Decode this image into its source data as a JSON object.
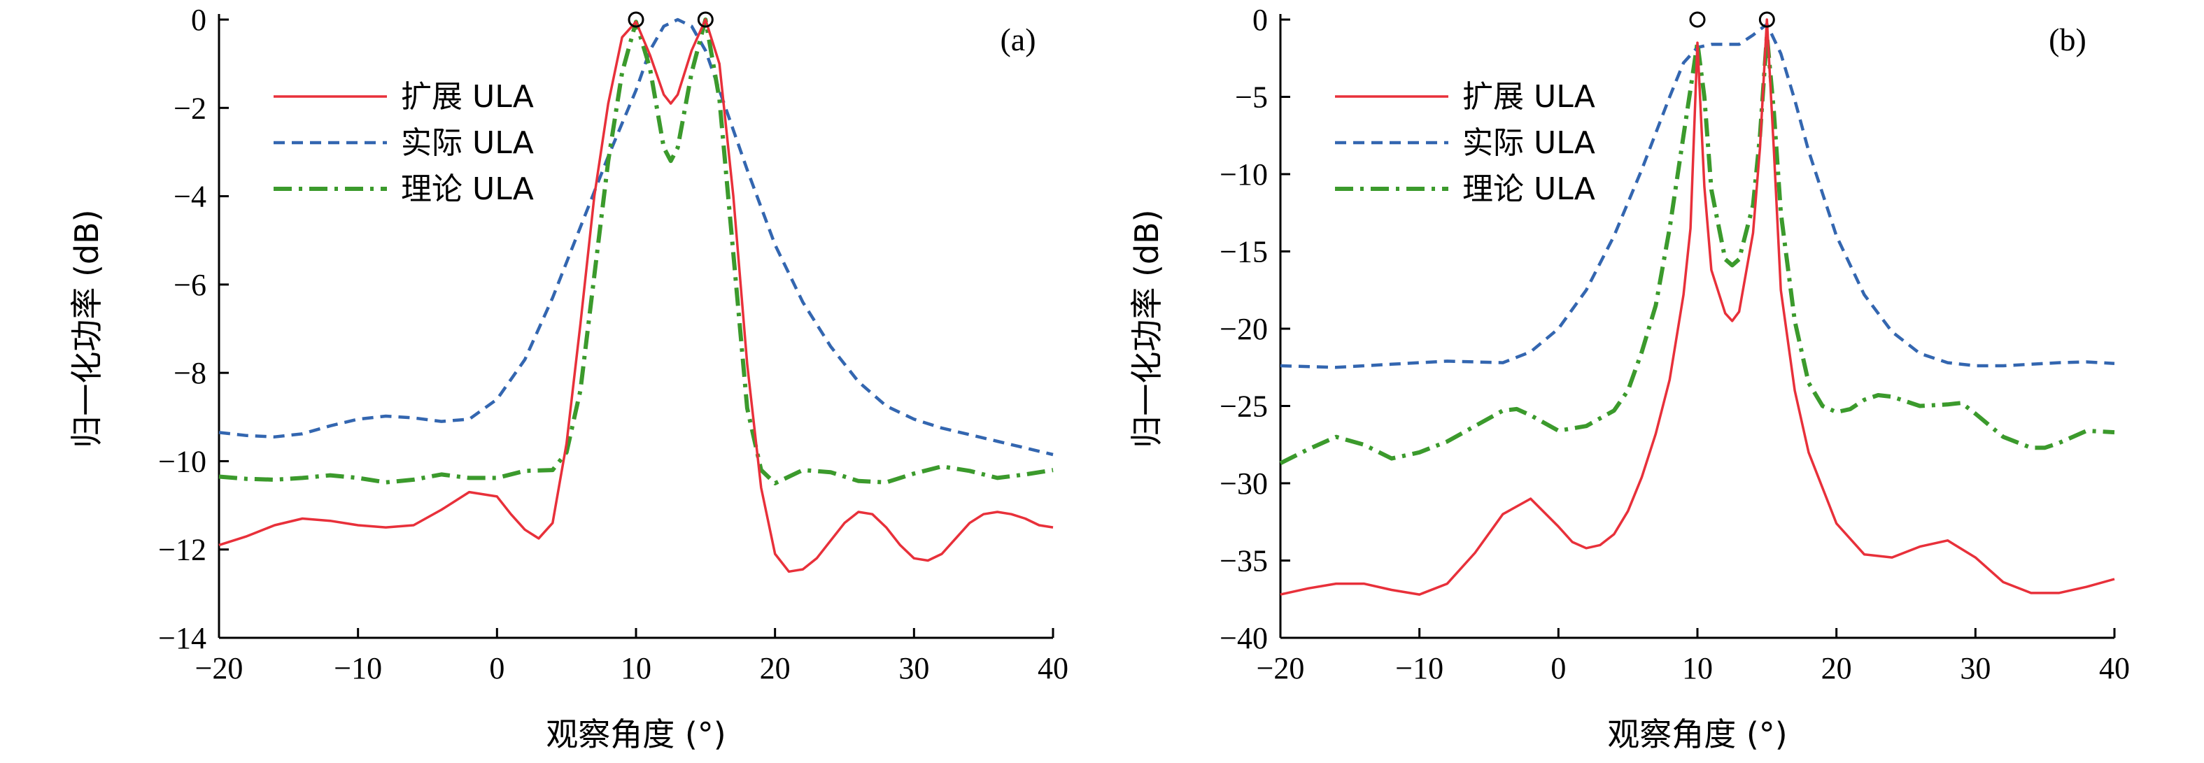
{
  "chart_data": [
    {
      "type": "line",
      "panel_label": "(a)",
      "xlabel": "观察角度 (°)",
      "ylabel": "归一化功率 (dB)",
      "xlim": [
        -20,
        40
      ],
      "ylim": [
        -14,
        0
      ],
      "xticks": [
        -20,
        -10,
        0,
        10,
        20,
        30,
        40
      ],
      "yticks": [
        0,
        -2,
        -4,
        -6,
        -8,
        -10,
        -12,
        -14
      ],
      "xtick_labels": [
        "−20",
        "−10",
        "0",
        "10",
        "20",
        "30",
        "40"
      ],
      "ytick_labels": [
        "0",
        "−2",
        "−4",
        "−6",
        "−8",
        "−10",
        "−12",
        "−14"
      ],
      "legend_position": "top-left",
      "markers": [
        {
          "x": 10,
          "y": 0
        },
        {
          "x": 15,
          "y": 0
        }
      ],
      "series": [
        {
          "name": "扩展 ULA",
          "color": "#e8303a",
          "style": "solid",
          "x": [
            -20,
            -18,
            -16,
            -14,
            -12,
            -10,
            -8,
            -6,
            -4,
            -2,
            0,
            1,
            2,
            3,
            4,
            5,
            6,
            7,
            8,
            9,
            10,
            11,
            12,
            12.5,
            13,
            14,
            15,
            16,
            17,
            18,
            19,
            20,
            21,
            22,
            23,
            24,
            25,
            26,
            27,
            28,
            29,
            30,
            31,
            32,
            33,
            34,
            35,
            36,
            37,
            38,
            39,
            40
          ],
          "y": [
            -11.9,
            -11.7,
            -11.45,
            -11.3,
            -11.35,
            -11.45,
            -11.5,
            -11.45,
            -11.1,
            -10.7,
            -10.8,
            -11.2,
            -11.55,
            -11.75,
            -11.4,
            -9.6,
            -6.9,
            -4.0,
            -1.9,
            -0.4,
            -0.05,
            -0.8,
            -1.7,
            -1.9,
            -1.7,
            -0.7,
            0,
            -1.0,
            -4.0,
            -7.8,
            -10.6,
            -12.1,
            -12.5,
            -12.45,
            -12.2,
            -11.8,
            -11.4,
            -11.15,
            -11.2,
            -11.5,
            -11.9,
            -12.2,
            -12.25,
            -12.1,
            -11.75,
            -11.4,
            -11.2,
            -11.15,
            -11.2,
            -11.3,
            -11.45,
            -11.5
          ]
        },
        {
          "name": "实际 ULA",
          "color": "#3366b0",
          "style": "dashed",
          "x": [
            -20,
            -18,
            -16,
            -14,
            -12,
            -10,
            -8,
            -6,
            -4,
            -2,
            0,
            2,
            4,
            6,
            8,
            10,
            11,
            12,
            13,
            14,
            15,
            16,
            18,
            20,
            22,
            24,
            26,
            28,
            30,
            32,
            34,
            36,
            38,
            40
          ],
          "y": [
            -9.35,
            -9.42,
            -9.45,
            -9.38,
            -9.2,
            -9.05,
            -8.98,
            -9.02,
            -9.1,
            -9.05,
            -8.6,
            -7.7,
            -6.3,
            -4.7,
            -3.1,
            -1.6,
            -0.7,
            -0.15,
            0,
            -0.15,
            -0.7,
            -1.6,
            -3.4,
            -5.1,
            -6.4,
            -7.4,
            -8.2,
            -8.75,
            -9.05,
            -9.25,
            -9.4,
            -9.55,
            -9.7,
            -9.85
          ]
        },
        {
          "name": "理论 ULA",
          "color": "#3b9a2c",
          "style": "dashdot",
          "x": [
            -20,
            -18,
            -16,
            -14,
            -12,
            -10,
            -8,
            -6,
            -4,
            -2,
            0,
            2,
            4,
            5,
            6,
            7,
            8,
            9,
            10,
            11,
            12,
            12.5,
            13,
            14,
            15,
            16,
            17,
            18,
            19,
            20,
            22,
            24,
            26,
            28,
            30,
            32,
            34,
            36,
            38,
            40
          ],
          "y": [
            -10.35,
            -10.4,
            -10.42,
            -10.38,
            -10.32,
            -10.38,
            -10.48,
            -10.42,
            -10.3,
            -10.38,
            -10.38,
            -10.22,
            -10.2,
            -9.8,
            -8.4,
            -5.8,
            -3.2,
            -1.2,
            -0.05,
            -1.1,
            -2.9,
            -3.2,
            -2.9,
            -1.2,
            0,
            -1.8,
            -5.3,
            -8.8,
            -10.2,
            -10.5,
            -10.2,
            -10.25,
            -10.45,
            -10.48,
            -10.28,
            -10.12,
            -10.22,
            -10.38,
            -10.3,
            -10.2
          ]
        }
      ]
    },
    {
      "type": "line",
      "panel_label": "(b)",
      "xlabel": "观察角度 (°)",
      "ylabel": "归一化功率 (dB)",
      "xlim": [
        -20,
        40
      ],
      "ylim": [
        -40,
        0
      ],
      "xticks": [
        -20,
        -10,
        0,
        10,
        20,
        30,
        40
      ],
      "yticks": [
        0,
        -5,
        -10,
        -15,
        -20,
        -25,
        -30,
        -35,
        -40
      ],
      "xtick_labels": [
        "−20",
        "−10",
        "0",
        "10",
        "20",
        "30",
        "40"
      ],
      "ytick_labels": [
        "0",
        "−5",
        "−10",
        "−15",
        "−20",
        "−25",
        "−30",
        "−35",
        "−40"
      ],
      "legend_position": "top-left",
      "markers": [
        {
          "x": 10,
          "y": 0
        },
        {
          "x": 15,
          "y": 0
        }
      ],
      "series": [
        {
          "name": "扩展 ULA",
          "color": "#e8303a",
          "style": "solid",
          "x": [
            -20,
            -18,
            -16,
            -14,
            -12,
            -10,
            -8,
            -6,
            -4,
            -2,
            0,
            1,
            2,
            3,
            4,
            5,
            6,
            7,
            8,
            9,
            9.5,
            10,
            10.5,
            11,
            12,
            12.5,
            13,
            14,
            14.5,
            15,
            15.5,
            16,
            17,
            18,
            20,
            22,
            24,
            26,
            28,
            30,
            32,
            34,
            36,
            38,
            40
          ],
          "y": [
            -37.2,
            -36.8,
            -36.5,
            -36.5,
            -36.9,
            -37.2,
            -36.5,
            -34.5,
            -32.0,
            -31.0,
            -32.8,
            -33.8,
            -34.2,
            -34.0,
            -33.3,
            -31.8,
            -29.6,
            -26.8,
            -23.3,
            -17.8,
            -13.5,
            -1.5,
            -10.8,
            -16.2,
            -19.0,
            -19.5,
            -18.9,
            -13.8,
            -8.3,
            0,
            -8.5,
            -17.5,
            -24.0,
            -28.0,
            -32.6,
            -34.6,
            -34.8,
            -34.1,
            -33.7,
            -34.8,
            -36.4,
            -37.1,
            -37.1,
            -36.7,
            -36.2
          ]
        },
        {
          "name": "实际 ULA",
          "color": "#3366b0",
          "style": "dashed",
          "x": [
            -20,
            -16,
            -12,
            -8,
            -4,
            -2,
            0,
            2,
            4,
            6,
            8,
            9,
            10,
            11,
            12,
            13,
            14,
            15,
            16,
            17,
            18,
            20,
            22,
            24,
            26,
            28,
            30,
            32,
            34,
            36,
            38,
            40
          ],
          "y": [
            -22.4,
            -22.5,
            -22.3,
            -22.1,
            -22.2,
            -21.5,
            -20.0,
            -17.5,
            -14.0,
            -9.7,
            -5.0,
            -2.8,
            -1.8,
            -1.6,
            -1.6,
            -1.6,
            -1.0,
            -0.3,
            -2.2,
            -5.2,
            -8.5,
            -14.0,
            -17.8,
            -20.2,
            -21.6,
            -22.2,
            -22.4,
            -22.4,
            -22.3,
            -22.2,
            -22.15,
            -22.25
          ]
        },
        {
          "name": "理论 ULA",
          "color": "#3b9a2c",
          "style": "dashdot",
          "x": [
            -20,
            -18,
            -16,
            -14,
            -12,
            -10,
            -8,
            -6,
            -4,
            -3,
            -2,
            0,
            2,
            4,
            5,
            6,
            7,
            8,
            9,
            9.5,
            10,
            10.5,
            11,
            12,
            12.5,
            13,
            14,
            14.5,
            15,
            15.5,
            16,
            17,
            18,
            19,
            20,
            21,
            22,
            23,
            24,
            26,
            28,
            29,
            30,
            32,
            34,
            35,
            36,
            38,
            40
          ],
          "y": [
            -28.7,
            -27.8,
            -27.0,
            -27.5,
            -28.4,
            -28.0,
            -27.3,
            -26.3,
            -25.3,
            -25.2,
            -25.6,
            -26.6,
            -26.3,
            -25.3,
            -24.0,
            -21.5,
            -18.5,
            -13.5,
            -7.5,
            -4.5,
            -1.5,
            -5.0,
            -11.0,
            -15.5,
            -15.9,
            -15.5,
            -12.0,
            -7.5,
            -1.0,
            -6.0,
            -12.5,
            -19.5,
            -23.5,
            -25.0,
            -25.4,
            -25.2,
            -24.6,
            -24.3,
            -24.4,
            -25.0,
            -24.9,
            -24.8,
            -25.5,
            -27.0,
            -27.7,
            -27.7,
            -27.4,
            -26.6,
            -26.7
          ]
        }
      ]
    }
  ]
}
